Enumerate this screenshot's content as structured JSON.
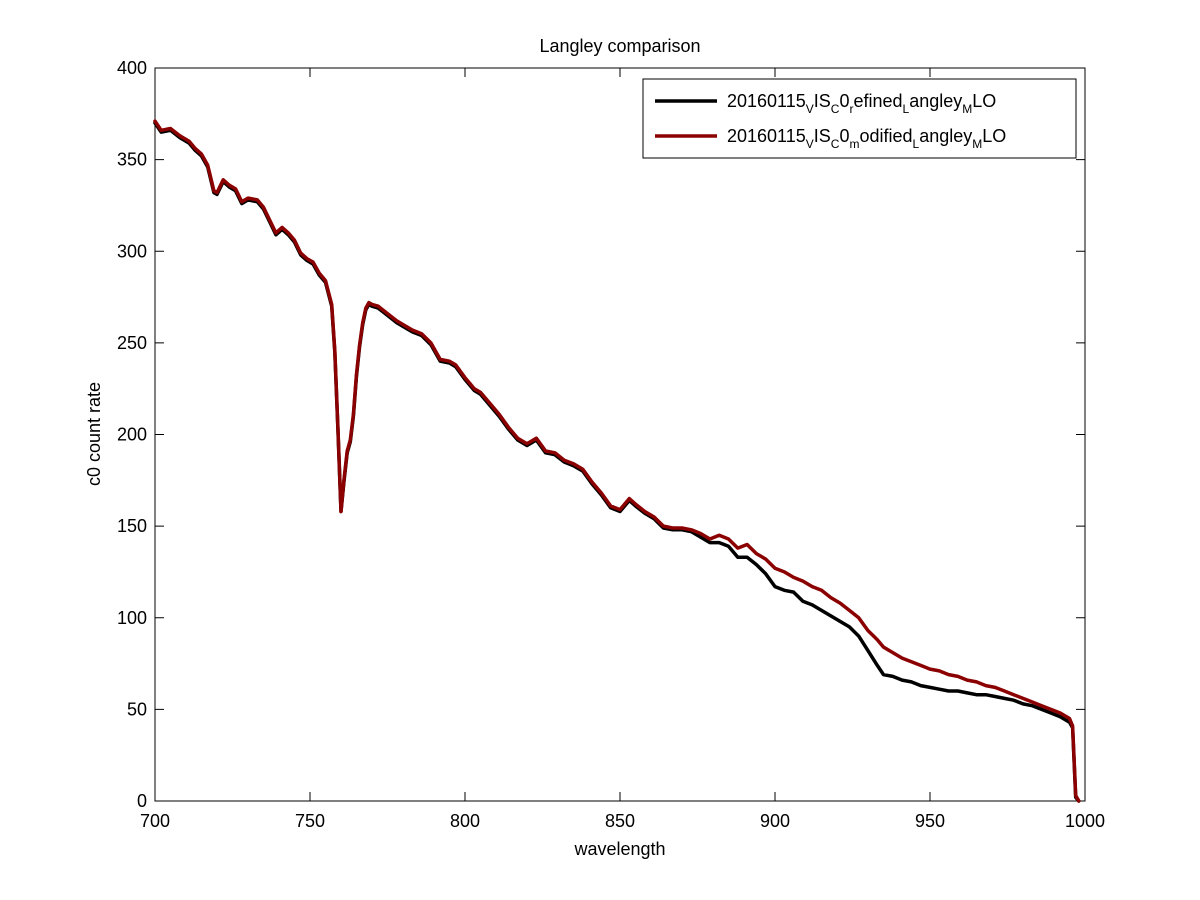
{
  "chart_data": {
    "type": "line",
    "title": "Langley comparison",
    "xlabel": "wavelength",
    "ylabel": "c0 count rate",
    "xlim": [
      700,
      1000
    ],
    "ylim": [
      0,
      400
    ],
    "xticks": [
      "700",
      "750",
      "800",
      "850",
      "900",
      "950",
      "1000"
    ],
    "yticks": [
      "0",
      "50",
      "100",
      "150",
      "200",
      "250",
      "300",
      "350",
      "400"
    ],
    "grid": false,
    "legend_position": "top-right",
    "series": [
      {
        "name": "20160115_VIS_C0_refined_Langley_MLO",
        "legend_parts": [
          {
            "t": "20160115",
            "sub": false
          },
          {
            "t": "V",
            "sub": true
          },
          {
            "t": "IS",
            "sub": false
          },
          {
            "t": "C",
            "sub": true
          },
          {
            "t": "0",
            "sub": false
          },
          {
            "t": "r",
            "sub": true
          },
          {
            "t": "efined",
            "sub": false
          },
          {
            "t": "L",
            "sub": true
          },
          {
            "t": "angley",
            "sub": false
          },
          {
            "t": "M",
            "sub": true
          },
          {
            "t": "LO",
            "sub": false
          }
        ],
        "color": "#000000",
        "x": [
          700,
          702,
          705,
          708,
          711,
          713,
          715,
          717,
          719,
          720,
          722,
          724,
          726,
          728,
          730,
          733,
          735,
          737,
          739,
          741,
          743,
          745,
          747,
          749,
          751,
          753,
          755,
          757,
          758,
          759,
          760,
          761,
          762,
          763,
          764,
          765,
          766,
          767,
          768,
          769,
          770,
          772,
          775,
          778,
          781,
          783,
          786,
          789,
          792,
          795,
          797,
          800,
          803,
          805,
          808,
          811,
          814,
          817,
          820,
          823,
          826,
          829,
          832,
          835,
          838,
          841,
          844,
          847,
          850,
          853,
          855,
          858,
          861,
          864,
          867,
          870,
          873,
          876,
          879,
          882,
          885,
          888,
          891,
          894,
          897,
          900,
          903,
          906,
          909,
          912,
          915,
          918,
          921,
          924,
          927,
          930,
          933,
          935,
          938,
          941,
          944,
          947,
          950,
          953,
          956,
          959,
          962,
          965,
          968,
          971,
          974,
          977,
          980,
          983,
          986,
          989,
          992,
          995,
          996,
          997,
          998
        ],
        "y": [
          370,
          365,
          366,
          362,
          359,
          355,
          352,
          346,
          332,
          331,
          338,
          335,
          333,
          326,
          328,
          327,
          323,
          316,
          309,
          312,
          309,
          305,
          298,
          295,
          293,
          287,
          283,
          270,
          245,
          203,
          158,
          175,
          190,
          196,
          210,
          232,
          248,
          260,
          268,
          271,
          270,
          269,
          265,
          261,
          258,
          256,
          254,
          249,
          240,
          239,
          237,
          230,
          224,
          222,
          216,
          210,
          203,
          197,
          194,
          197,
          190,
          189,
          185,
          183,
          180,
          173,
          167,
          160,
          158,
          164,
          161,
          157,
          154,
          149,
          148,
          148,
          147,
          144,
          141,
          141,
          139,
          133,
          133,
          129,
          124,
          117,
          115,
          114,
          109,
          107,
          104,
          101,
          98,
          95,
          90,
          82,
          74,
          69,
          68,
          66,
          65,
          63,
          62,
          61,
          60,
          60,
          59,
          58,
          58,
          57,
          56,
          55,
          53,
          52,
          50,
          48,
          46,
          43,
          40,
          2,
          0
        ]
      },
      {
        "name": "20160115_VIS_C0_modified_Langley_MLO",
        "legend_parts": [
          {
            "t": "20160115",
            "sub": false
          },
          {
            "t": "V",
            "sub": true
          },
          {
            "t": "IS",
            "sub": false
          },
          {
            "t": "C",
            "sub": true
          },
          {
            "t": "0",
            "sub": false
          },
          {
            "t": "m",
            "sub": true
          },
          {
            "t": "odified",
            "sub": false
          },
          {
            "t": "L",
            "sub": true
          },
          {
            "t": "angley",
            "sub": false
          },
          {
            "t": "M",
            "sub": true
          },
          {
            "t": "LO",
            "sub": false
          }
        ],
        "color": "#8b0000",
        "x": [
          700,
          702,
          705,
          708,
          711,
          713,
          715,
          717,
          719,
          720,
          722,
          724,
          726,
          728,
          730,
          733,
          735,
          737,
          739,
          741,
          743,
          745,
          747,
          749,
          751,
          753,
          755,
          757,
          758,
          759,
          760,
          761,
          762,
          763,
          764,
          765,
          766,
          767,
          768,
          769,
          770,
          772,
          775,
          778,
          781,
          783,
          786,
          789,
          792,
          795,
          797,
          800,
          803,
          805,
          808,
          811,
          814,
          817,
          820,
          823,
          826,
          829,
          832,
          835,
          838,
          841,
          844,
          847,
          850,
          853,
          855,
          858,
          861,
          864,
          867,
          870,
          873,
          876,
          879,
          882,
          885,
          888,
          891,
          894,
          897,
          900,
          903,
          906,
          909,
          912,
          915,
          918,
          921,
          924,
          927,
          930,
          933,
          935,
          938,
          941,
          944,
          947,
          950,
          953,
          956,
          959,
          962,
          965,
          968,
          971,
          974,
          977,
          980,
          983,
          986,
          989,
          992,
          995,
          996,
          997,
          998
        ],
        "y": [
          371,
          366,
          367,
          363,
          360,
          356,
          353,
          347,
          333,
          332,
          339,
          336,
          334,
          327,
          329,
          328,
          324,
          317,
          310,
          313,
          310,
          306,
          299,
          296,
          294,
          288,
          284,
          271,
          246,
          204,
          158,
          176,
          191,
          197,
          211,
          233,
          249,
          261,
          269,
          272,
          271,
          270,
          266,
          262,
          259,
          257,
          255,
          250,
          241,
          240,
          238,
          231,
          225,
          223,
          217,
          211,
          204,
          198,
          195,
          198,
          191,
          190,
          186,
          184,
          181,
          174,
          168,
          161,
          159,
          165,
          162,
          158,
          155,
          150,
          149,
          149,
          148,
          146,
          143,
          145,
          143,
          138,
          140,
          135,
          132,
          127,
          125,
          122,
          120,
          117,
          115,
          111,
          108,
          104,
          100,
          93,
          88,
          84,
          81,
          78,
          76,
          74,
          72,
          71,
          69,
          68,
          66,
          65,
          63,
          62,
          60,
          58,
          56,
          54,
          52,
          50,
          48,
          45,
          41,
          3,
          0
        ]
      }
    ]
  }
}
